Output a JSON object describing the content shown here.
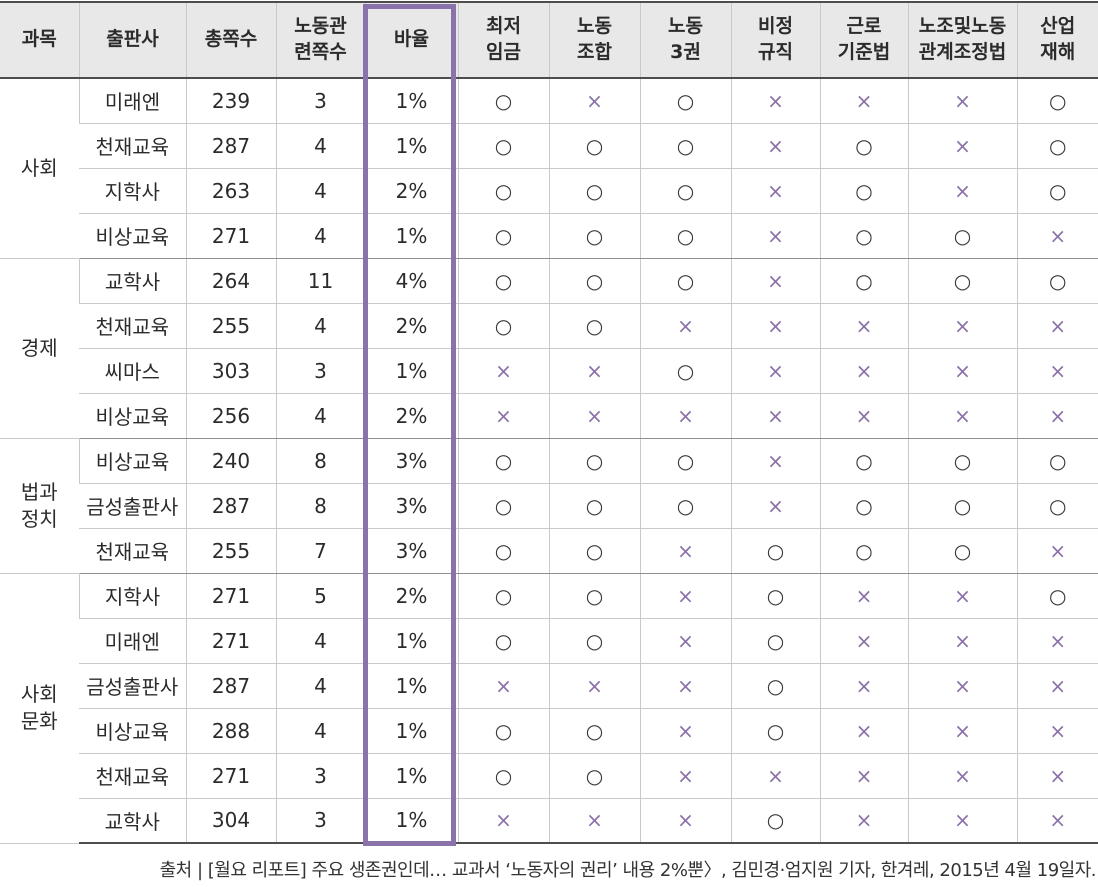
{
  "headers": [
    {
      "key": "subject",
      "lines": [
        "과목"
      ]
    },
    {
      "key": "publisher",
      "lines": [
        "출판사"
      ]
    },
    {
      "key": "total_pages",
      "lines": [
        "총쪽수"
      ]
    },
    {
      "key": "labor_pages",
      "lines": [
        "노동관",
        "련쪽수"
      ]
    },
    {
      "key": "ratio",
      "lines": [
        "바율"
      ]
    },
    {
      "key": "min_wage",
      "lines": [
        "최저",
        "임금"
      ]
    },
    {
      "key": "union",
      "lines": [
        "노동",
        "조합"
      ]
    },
    {
      "key": "three_rights",
      "lines": [
        "노동",
        "3권"
      ]
    },
    {
      "key": "irregular",
      "lines": [
        "비정",
        "규직"
      ]
    },
    {
      "key": "labor_standards",
      "lines": [
        "근로",
        "기준법"
      ]
    },
    {
      "key": "labor_relations",
      "lines": [
        "노조및노동",
        "관계조정법"
      ]
    },
    {
      "key": "industrial_accident",
      "lines": [
        "산업",
        "재해"
      ]
    }
  ],
  "groups": [
    {
      "subject": [
        "사회"
      ],
      "rows": [
        {
          "publisher": "미래엔",
          "total": "239",
          "labor": "3",
          "ratio": "1%",
          "marks": [
            "○",
            "×",
            "○",
            "×",
            "×",
            "×",
            "○"
          ]
        },
        {
          "publisher": "천재교육",
          "total": "287",
          "labor": "4",
          "ratio": "1%",
          "marks": [
            "○",
            "○",
            "○",
            "×",
            "○",
            "×",
            "○"
          ]
        },
        {
          "publisher": "지학사",
          "total": "263",
          "labor": "4",
          "ratio": "2%",
          "marks": [
            "○",
            "○",
            "○",
            "×",
            "○",
            "×",
            "○"
          ]
        },
        {
          "publisher": "비상교육",
          "total": "271",
          "labor": "4",
          "ratio": "1%",
          "marks": [
            "○",
            "○",
            "○",
            "×",
            "○",
            "○",
            "×"
          ]
        }
      ]
    },
    {
      "subject": [
        "경제"
      ],
      "rows": [
        {
          "publisher": "교학사",
          "total": "264",
          "labor": "11",
          "ratio": "4%",
          "marks": [
            "○",
            "○",
            "○",
            "×",
            "○",
            "○",
            "○"
          ]
        },
        {
          "publisher": "천재교육",
          "total": "255",
          "labor": "4",
          "ratio": "2%",
          "marks": [
            "○",
            "○",
            "×",
            "×",
            "×",
            "×",
            "×"
          ]
        },
        {
          "publisher": "씨마스",
          "total": "303",
          "labor": "3",
          "ratio": "1%",
          "marks": [
            "×",
            "×",
            "○",
            "×",
            "×",
            "×",
            "×"
          ]
        },
        {
          "publisher": "비상교육",
          "total": "256",
          "labor": "4",
          "ratio": "2%",
          "marks": [
            "×",
            "×",
            "×",
            "×",
            "×",
            "×",
            "×"
          ]
        }
      ]
    },
    {
      "subject": [
        "법과",
        "정치"
      ],
      "rows": [
        {
          "publisher": "비상교육",
          "total": "240",
          "labor": "8",
          "ratio": "3%",
          "marks": [
            "○",
            "○",
            "○",
            "×",
            "○",
            "○",
            "○"
          ]
        },
        {
          "publisher": "금성출판사",
          "total": "287",
          "labor": "8",
          "ratio": "3%",
          "marks": [
            "○",
            "○",
            "○",
            "×",
            "○",
            "○",
            "○"
          ]
        },
        {
          "publisher": "천재교육",
          "total": "255",
          "labor": "7",
          "ratio": "3%",
          "marks": [
            "○",
            "○",
            "×",
            "○",
            "○",
            "○",
            "×"
          ]
        }
      ]
    },
    {
      "subject": [
        "사회",
        "문화"
      ],
      "rows": [
        {
          "publisher": "지학사",
          "total": "271",
          "labor": "5",
          "ratio": "2%",
          "marks": [
            "○",
            "○",
            "×",
            "○",
            "×",
            "×",
            "○"
          ]
        },
        {
          "publisher": "미래엔",
          "total": "271",
          "labor": "4",
          "ratio": "1%",
          "marks": [
            "○",
            "○",
            "×",
            "○",
            "×",
            "×",
            "×"
          ]
        },
        {
          "publisher": "금성출판사",
          "total": "287",
          "labor": "4",
          "ratio": "1%",
          "marks": [
            "×",
            "×",
            "×",
            "○",
            "×",
            "×",
            "×"
          ]
        },
        {
          "publisher": "비상교육",
          "total": "288",
          "labor": "4",
          "ratio": "1%",
          "marks": [
            "○",
            "○",
            "×",
            "○",
            "×",
            "×",
            "×"
          ]
        },
        {
          "publisher": "천재교육",
          "total": "271",
          "labor": "3",
          "ratio": "1%",
          "marks": [
            "○",
            "○",
            "×",
            "×",
            "×",
            "×",
            "×"
          ]
        },
        {
          "publisher": "교학사",
          "total": "304",
          "labor": "3",
          "ratio": "1%",
          "marks": [
            "×",
            "×",
            "×",
            "○",
            "×",
            "×",
            "×"
          ]
        }
      ]
    }
  ],
  "source": "출처 | [월요 리포트] 주요 생존권인데… 교과서 ‘노동자의 권리’ 내용 2%뿐〉, 김민경·엄지원 기자, 한겨레, 2015년 4월 19일자.",
  "colors": {
    "header_bg": "#e8e8e8",
    "ratio_highlight": "#8a73ab",
    "x_mark": "#8a71a8",
    "o_mark": "#3a3a3a",
    "rule": "#4d4d4d",
    "grid": "#c9c9c9"
  }
}
